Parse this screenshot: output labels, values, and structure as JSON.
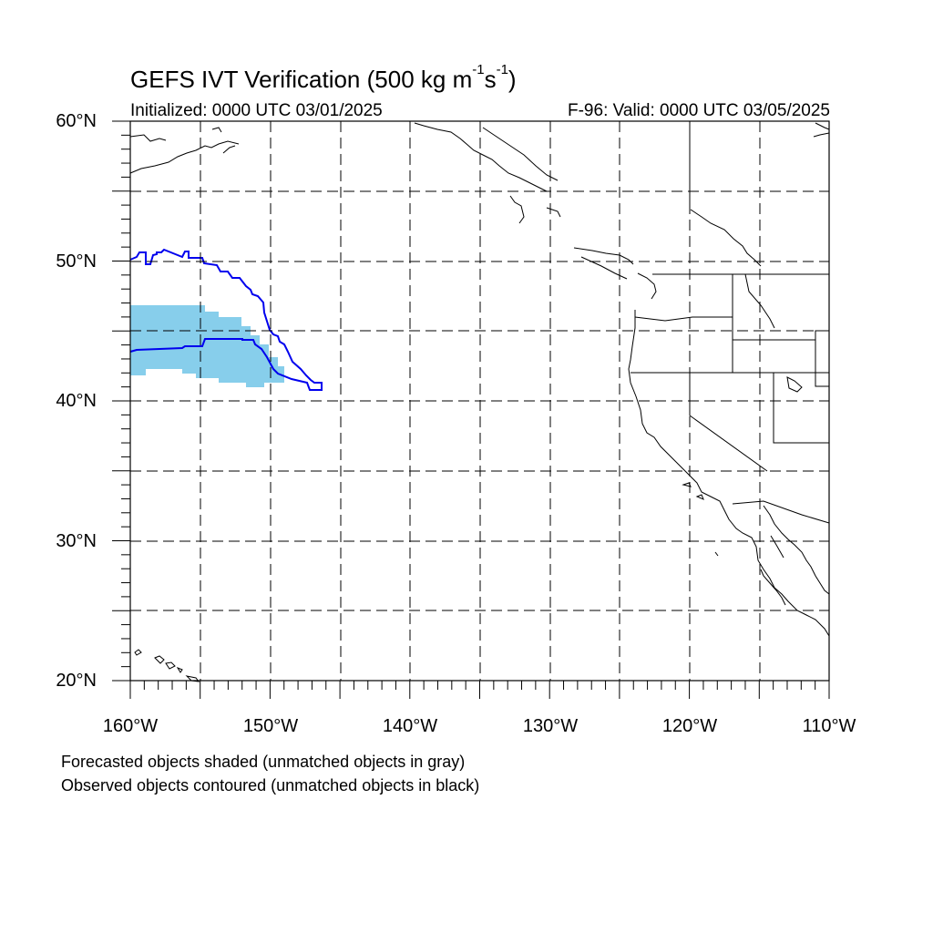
{
  "header": {
    "title_main": "GEFS IVT Verification (500 kg m",
    "title_sup1": "-1",
    "title_mid": "s",
    "title_sup2": "-1",
    "title_end": ")",
    "initialized": "Initialized: 0000 UTC 03/01/2025",
    "valid": "F-96: Valid: 0000 UTC 03/05/2025"
  },
  "axes": {
    "lat_labels": [
      "60°N",
      "50°N",
      "40°N",
      "30°N",
      "20°N"
    ],
    "lon_labels": [
      "160°W",
      "150°W",
      "140°W",
      "130°W",
      "120°W",
      "110°W"
    ],
    "lat_range": [
      20,
      60
    ],
    "lon_range": [
      -160,
      -110
    ],
    "gridline_spacing_deg": 5,
    "grid": true
  },
  "legend_notes": {
    "forecast": "Forecasted objects shaded (unmatched objects in gray)",
    "observed": "Observed objects contoured (unmatched objects in black)"
  },
  "colors": {
    "forecast_fill": "#87ceeb",
    "observed_contour": "#0000ee",
    "coastline": "#000000",
    "grid": "#000000"
  },
  "forecast_object": {
    "lat_range_approx": [
      40.9,
      46.8
    ],
    "lon_range_approx": [
      -160,
      -150.8
    ]
  },
  "observed_object": {
    "lat_range_approx": [
      40.7,
      50.8
    ],
    "lon_range_approx": [
      -160,
      -146.4
    ]
  }
}
